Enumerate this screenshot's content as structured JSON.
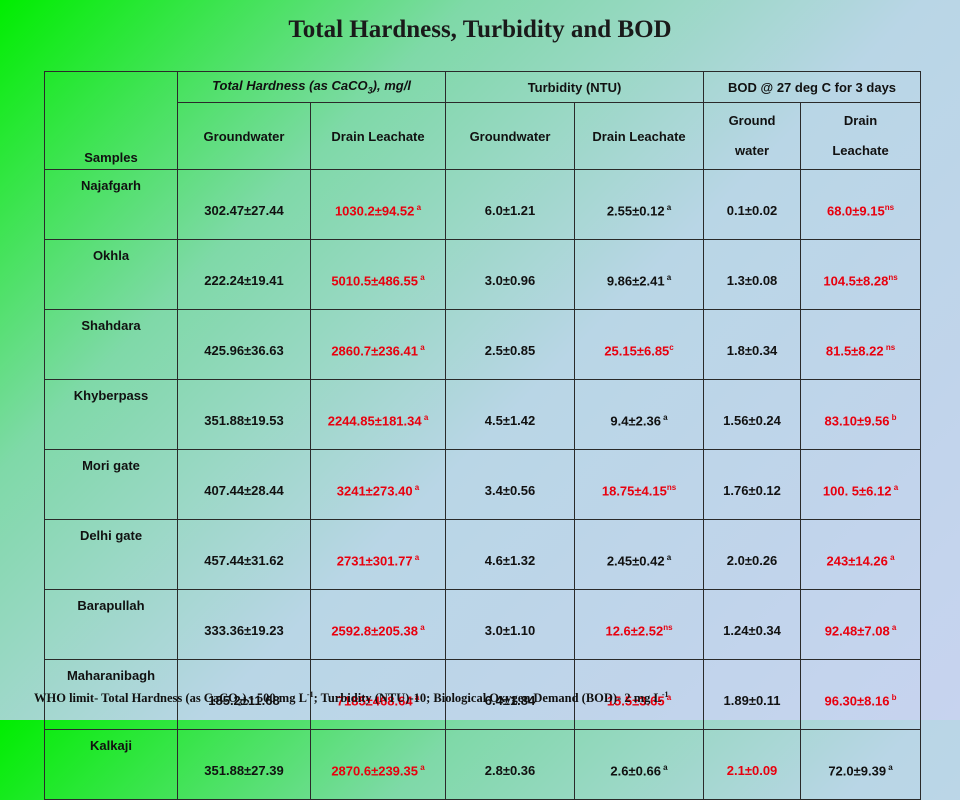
{
  "title": "Total Hardness, Turbidity and BOD",
  "header": {
    "samples": "Samples",
    "hardness": "Total Hardness (as CaCO",
    "hardness_sub": "3",
    "hardness_tail": "), mg/l",
    "turbidity": "Turbidity (NTU)",
    "bod": "BOD @ 27 deg C for 3 days",
    "groundwater": "Groundwater",
    "drain_leachate": "Drain Leachate",
    "ground": "Ground",
    "water": "water",
    "drain": "Drain",
    "leachate": "Leachate"
  },
  "rows": [
    {
      "location": "Najafgarh",
      "th_gw": "302.47±27.44",
      "th_dl": "1030.2±94.52",
      "th_dl_sup": " a",
      "tu_gw": "6.0±1.21",
      "tu_dl": "2.55±0.12",
      "tu_dl_sup": " a",
      "bod_gw": "0.1±0.02",
      "bod_dl": "68.0±9.15",
      "bod_dl_sup": "ns"
    },
    {
      "location": "Okhla",
      "th_gw": "222.24±19.41",
      "th_dl": "5010.5±486.55",
      "th_dl_sup": " a",
      "tu_gw": "3.0±0.96",
      "tu_dl": "9.86±2.41",
      "tu_dl_sup": " a",
      "bod_gw": "1.3±0.08",
      "bod_dl": "104.5±8.28",
      "bod_dl_sup": "ns"
    },
    {
      "location": "Shahdara",
      "th_gw": "425.96±36.63",
      "th_dl": "2860.7±236.41",
      "th_dl_sup": " a",
      "tu_gw": "2.5±0.85",
      "tu_dl": "25.15±6.85",
      "tu_dl_sup": "c",
      "bod_gw": "1.8±0.34",
      "bod_dl": "81.5±8.22",
      "bod_dl_sup": " ns"
    },
    {
      "location": "Khyberpass",
      "th_gw": "351.88±19.53",
      "th_dl": "2244.85±181.34",
      "th_dl_sup": " a",
      "tu_gw": "4.5±1.42",
      "tu_dl": "9.4±2.36",
      "tu_dl_sup": " a",
      "bod_gw": "1.56±0.24",
      "bod_dl": "83.10±9.56",
      "bod_dl_sup": " b"
    },
    {
      "location": "Mori gate",
      "th_gw": "407.44±28.44",
      "th_dl": "3241±273.40",
      "th_dl_sup": " a",
      "tu_gw": "3.4±0.56",
      "tu_dl": "18.75±4.15",
      "tu_dl_sup": "ns",
      "bod_gw": "1.76±0.12",
      "bod_dl": "100. 5±6.12",
      "bod_dl_sup": " a"
    },
    {
      "location": "Delhi gate",
      "th_gw": "457.44±31.62",
      "th_dl": "2731±301.77",
      "th_dl_sup": " a",
      "tu_gw": "4.6±1.32",
      "tu_dl": "2.45±0.42",
      "tu_dl_sup": " a",
      "bod_gw": "2.0±0.26",
      "bod_dl": "243±14.26",
      "bod_dl_sup": " a"
    },
    {
      "location": "Barapullah",
      "th_gw": "333.36±19.23",
      "th_dl": "2592.8±205.38",
      "th_dl_sup": " a",
      "tu_gw": "3.0±1.10",
      "tu_dl": "12.6±2.52",
      "tu_dl_sup": "ns",
      "bod_gw": "1.24±0.34",
      "bod_dl": "92.48±7.08",
      "bod_dl_sup": " a"
    },
    {
      "location": "Maharanibagh",
      "th_gw": "185.2±11.68",
      "th_dl": "7185±468.64",
      "th_dl_sup": " a",
      "tu_gw": "6.4±1.84",
      "tu_dl": "15.5±3.65",
      "tu_dl_sup": " a",
      "bod_gw": "1.89±0.11",
      "bod_dl": "96.30±8.16",
      "bod_dl_sup": " b"
    },
    {
      "location": "Kalkaji",
      "th_gw": "351.88±27.39",
      "th_dl": "2870.6±239.35",
      "th_dl_sup": " a",
      "tu_gw": "2.8±0.36",
      "tu_dl": "2.6±0.66",
      "tu_dl_sup": " a",
      "bod_gw": "2.1±0.09",
      "bod_dl": "72.0±9.39",
      "bod_dl_sup": " a"
    }
  ],
  "colors": {
    "red_text": "#e8000e",
    "normal_text": "#111111"
  },
  "red_cells": {
    "th_dl": "all",
    "tu_dl": [
      "Shahdara",
      "Mori gate",
      "Barapullah",
      "Maharanibagh"
    ],
    "bod_gw": [
      "Kalkaji"
    ],
    "bod_dl": [
      "Najafgarh",
      "Okhla",
      "Shahdara",
      "Khyberpass",
      "Mori gate",
      "Delhi gate",
      "Barapullah",
      "Maharanibagh"
    ]
  },
  "footer": {
    "p1": "WHO limit- Total Hardness (as CaCO",
    "p1_sub": "3",
    "p2": "),- 500 mg L",
    "p2_sup": "-1",
    "p3": "; Turbidity (NTU)-10; Biological Oxygen Demand  (BOD)- 2 mg L",
    "p3_sup": "-1"
  }
}
